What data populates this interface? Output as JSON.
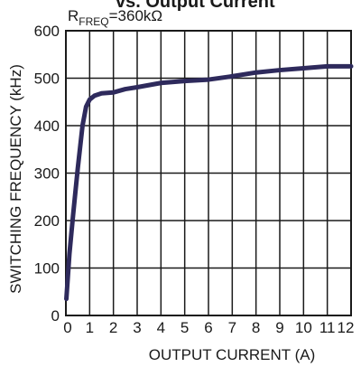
{
  "chart_data": {
    "type": "line",
    "title": "vs. Output Current",
    "subtitle_main": "R",
    "subtitle_sub": "FREQ",
    "subtitle_rest": "=360kΩ",
    "xlabel": "OUTPUT CURRENT (A)",
    "ylabel": "SWITCHING FREQUENCY (kHz)",
    "xlim": [
      0,
      12
    ],
    "ylim": [
      0,
      600
    ],
    "x_ticks": [
      "0",
      "1",
      "2",
      "3",
      "4",
      "5",
      "6",
      "7",
      "8",
      "9",
      "10",
      "11",
      "12"
    ],
    "y_ticks": [
      "0",
      "100",
      "200",
      "300",
      "400",
      "500",
      "600"
    ],
    "grid": true,
    "line_color": "#2e2a5c",
    "series": [
      {
        "x": [
          0.02,
          0.15,
          0.3,
          0.5,
          0.7,
          0.85,
          1.0,
          1.2,
          1.5,
          2.0,
          2.5,
          3.0,
          4.0,
          5.0,
          6.0,
          7.0,
          8.0,
          9.0,
          10.0,
          11.0,
          12.0
        ],
        "y": [
          35,
          130,
          210,
          310,
          400,
          440,
          455,
          463,
          468,
          470,
          477,
          481,
          490,
          494,
          497,
          504,
          512,
          517,
          521,
          525,
          525
        ]
      }
    ]
  }
}
